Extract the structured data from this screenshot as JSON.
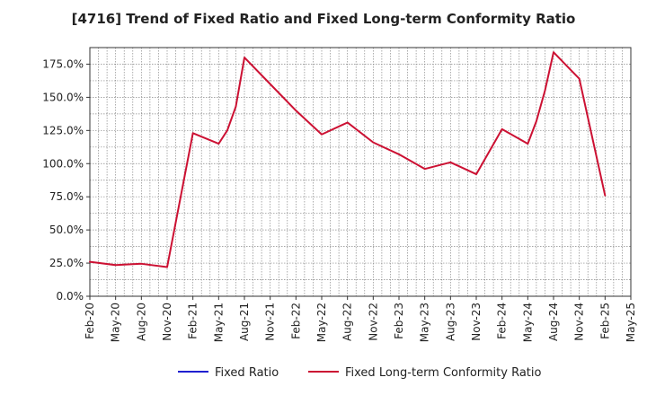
{
  "chart_data": {
    "type": "line",
    "title": "[4716]  Trend of Fixed Ratio and Fixed Long-term Conformity Ratio",
    "xlabel": "",
    "ylabel": "",
    "ylim": [
      0,
      187.5
    ],
    "yticks": [
      "0.0%",
      "25.0%",
      "50.0%",
      "75.0%",
      "100.0%",
      "125.0%",
      "150.0%",
      "175.0%"
    ],
    "ytick_values": [
      0,
      25,
      50,
      75,
      100,
      125,
      150,
      175
    ],
    "x_ticks": [
      "Feb-20",
      "May-20",
      "Aug-20",
      "Nov-20",
      "Feb-21",
      "May-21",
      "Aug-21",
      "Nov-21",
      "Feb-22",
      "May-22",
      "Aug-22",
      "Nov-22",
      "Feb-23",
      "May-23",
      "Aug-23",
      "Nov-23",
      "Feb-24",
      "May-24",
      "Aug-24",
      "Nov-24",
      "Feb-25",
      "May-25"
    ],
    "grid": true,
    "legend": "bottom",
    "series": [
      {
        "name": "Fixed Ratio",
        "color": "#1f1fd0",
        "x": [],
        "values": []
      },
      {
        "name": "Fixed Long-term Conformity Ratio",
        "color": "#cc1133",
        "x": [
          "Feb-20",
          "May-20",
          "Aug-20",
          "Nov-20",
          "Feb-21",
          "May-21",
          "Jun-21",
          "Jul-21",
          "Aug-21",
          "Nov-21",
          "Feb-22",
          "May-22",
          "Aug-22",
          "Nov-22",
          "Feb-23",
          "May-23",
          "Aug-23",
          "Nov-23",
          "Feb-24",
          "May-24",
          "Jun-24",
          "Jul-24",
          "Aug-24",
          "Nov-24",
          "Feb-25"
        ],
        "values": [
          26,
          23.5,
          24.5,
          22,
          123,
          115,
          125,
          143,
          180,
          160,
          140,
          122,
          131,
          116,
          107,
          96,
          101,
          92,
          126,
          115,
          132,
          155,
          184,
          164,
          76
        ]
      }
    ]
  }
}
